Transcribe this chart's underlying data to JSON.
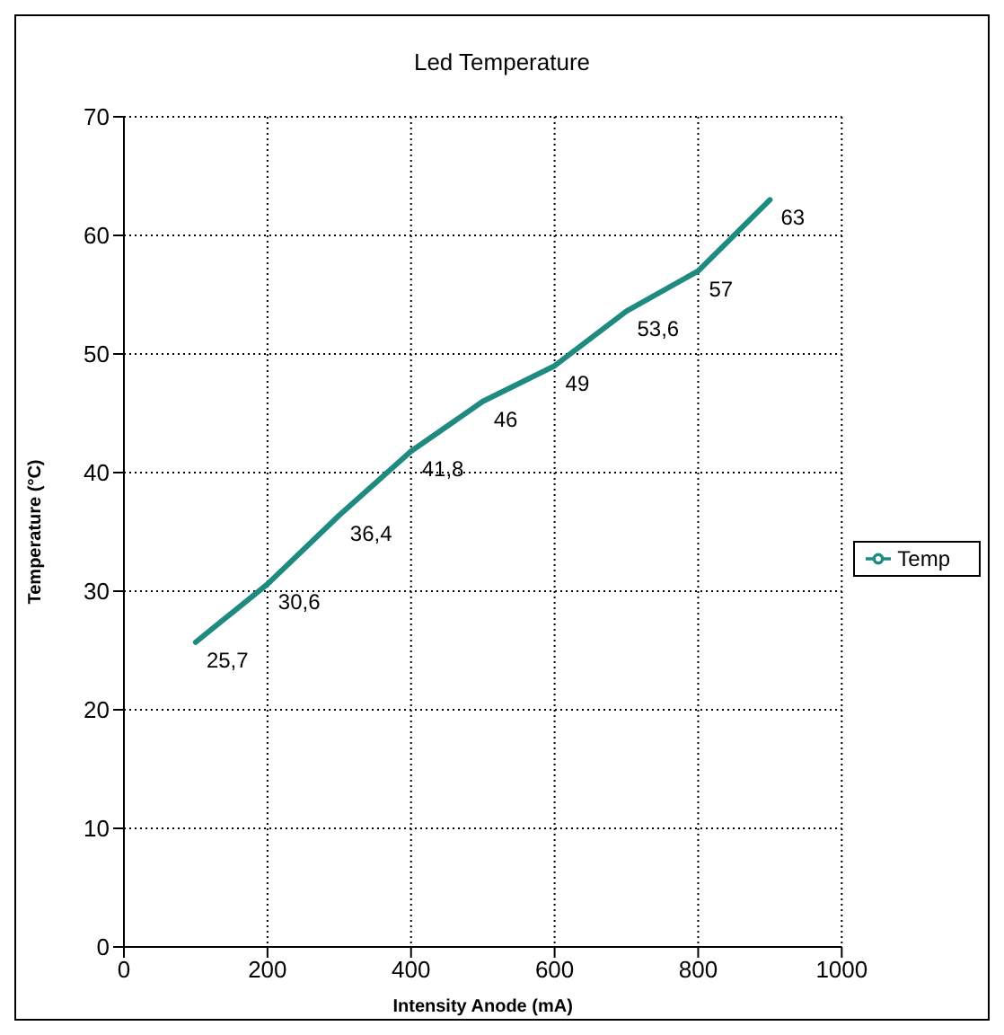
{
  "chart_data": {
    "type": "line",
    "title": "Led Temperature",
    "xlabel": "Intensity Anode (mA)",
    "ylabel": "Temperature (°C)",
    "x": [
      100,
      200,
      300,
      400,
      500,
      600,
      700,
      800,
      900
    ],
    "series": [
      {
        "name": "Temp",
        "color": "#1f8a80",
        "values": [
          25.7,
          30.6,
          36.4,
          41.8,
          46,
          49,
          53.6,
          57,
          63
        ],
        "value_labels": [
          "25,7",
          "30,6",
          "36,4",
          "41,8",
          "46",
          "49",
          "53,6",
          "57",
          "63"
        ]
      }
    ],
    "xlim": [
      0,
      1000
    ],
    "xticks": [
      0,
      200,
      400,
      600,
      800,
      1000
    ],
    "ylim": [
      0,
      70
    ],
    "yticks": [
      0,
      10,
      20,
      30,
      40,
      50,
      60,
      70
    ],
    "grid": true,
    "legend": "right",
    "marker": "none",
    "line_style": "solid"
  }
}
